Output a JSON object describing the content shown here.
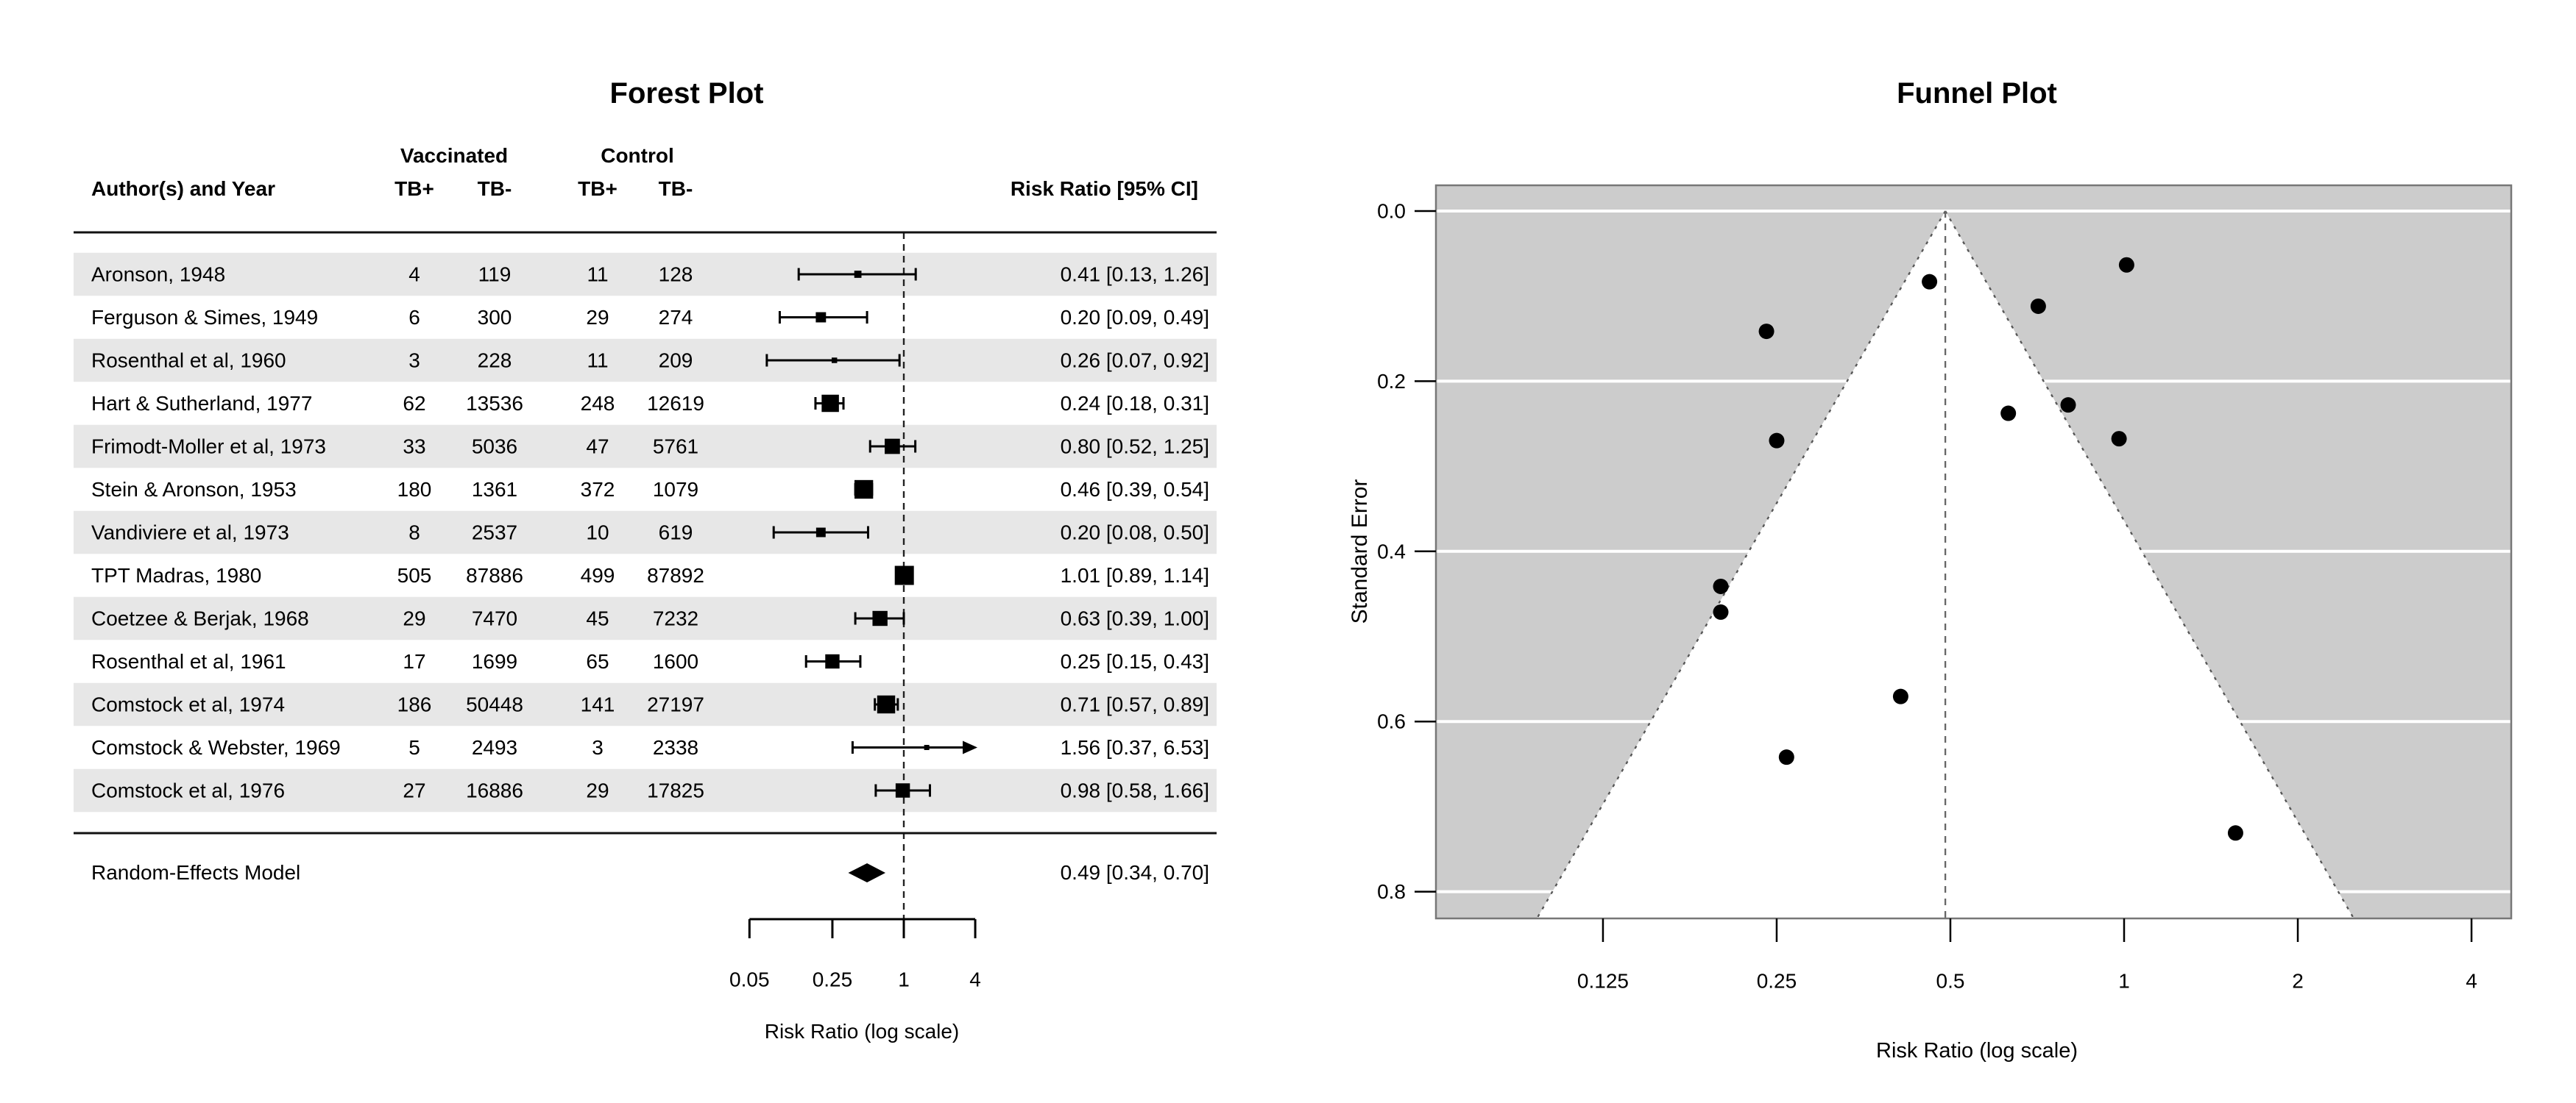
{
  "figure": {
    "description": "Meta-analysis of BCG vaccine trials: forest plot and funnel plot side by side"
  },
  "colors": {
    "background": "#ffffff",
    "row_shade": "#e7e7e7",
    "funnel_background": "#cccccc",
    "funnel_shade_inside": "#ffffff",
    "gridline_white": "#ffffff",
    "marker_black": "#000000",
    "dashed_ref_line": "#222222",
    "funnel_border_dotted": "#555555",
    "funnel_center_dashed": "#666666",
    "plot_box_border": "#777777"
  },
  "chart_data": [
    {
      "type": "scatter",
      "subtype": "forest_plot",
      "title": "Forest Plot",
      "header_author": "Author(s) and Year",
      "group_vaccinated": "Vaccinated",
      "group_control": "Control",
      "subheaders": [
        "TB+",
        "TB-",
        "TB+",
        "TB-"
      ],
      "header_rr": "Risk Ratio [95% CI]",
      "axis": {
        "label": "Risk Ratio (log scale)",
        "scale": "log",
        "tick_labels": [
          "0.05",
          "0.25",
          "1",
          "4"
        ],
        "tick_values": [
          0.05,
          0.25,
          1,
          4
        ],
        "min": 0.05,
        "max": 4,
        "reference_line": 1
      },
      "studies": [
        {
          "author": "Aronson, 1948",
          "vac_tb_pos": "4",
          "vac_tb_neg": "119",
          "con_tb_pos": "11",
          "con_tb_neg": "128",
          "rr": 0.41,
          "ci_low": 0.13,
          "ci_high": 1.26,
          "se": 0.5706,
          "label": "0.41 [0.13, 1.26]"
        },
        {
          "author": "Ferguson & Simes, 1949",
          "vac_tb_pos": "6",
          "vac_tb_neg": "300",
          "con_tb_pos": "29",
          "con_tb_neg": "274",
          "rr": 0.2,
          "ci_low": 0.09,
          "ci_high": 0.49,
          "se": 0.4412,
          "label": "0.20 [0.09, 0.49]"
        },
        {
          "author": "Rosenthal et al, 1960",
          "vac_tb_pos": "3",
          "vac_tb_neg": "228",
          "con_tb_pos": "11",
          "con_tb_neg": "209",
          "rr": 0.26,
          "ci_low": 0.07,
          "ci_high": 0.92,
          "se": 0.6419,
          "label": "0.26 [0.07, 0.92]"
        },
        {
          "author": "Hart & Sutherland, 1977",
          "vac_tb_pos": "62",
          "vac_tb_neg": "13536",
          "con_tb_pos": "248",
          "con_tb_neg": "12619",
          "rr": 0.24,
          "ci_low": 0.18,
          "ci_high": 0.31,
          "se": 0.1414,
          "label": "0.24 [0.18, 0.31]"
        },
        {
          "author": "Frimodt-Moller et al, 1973",
          "vac_tb_pos": "33",
          "vac_tb_neg": "5036",
          "con_tb_pos": "47",
          "con_tb_neg": "5761",
          "rr": 0.8,
          "ci_low": 0.52,
          "ci_high": 1.25,
          "se": 0.2279,
          "label": "0.80 [0.52, 1.25]"
        },
        {
          "author": "Stein & Aronson, 1953",
          "vac_tb_pos": "180",
          "vac_tb_neg": "1361",
          "con_tb_pos": "372",
          "con_tb_neg": "1079",
          "rr": 0.46,
          "ci_low": 0.39,
          "ci_high": 0.54,
          "se": 0.0831,
          "label": "0.46 [0.39, 0.54]"
        },
        {
          "author": "Vandiviere et al, 1973",
          "vac_tb_pos": "8",
          "vac_tb_neg": "2537",
          "con_tb_pos": "10",
          "con_tb_neg": "619",
          "rr": 0.2,
          "ci_low": 0.08,
          "ci_high": 0.5,
          "se": 0.4714,
          "label": "0.20 [0.08, 0.50]"
        },
        {
          "author": "TPT Madras, 1980",
          "vac_tb_pos": "505",
          "vac_tb_neg": "87886",
          "con_tb_pos": "499",
          "con_tb_neg": "87892",
          "rr": 1.01,
          "ci_low": 0.89,
          "ci_high": 1.14,
          "se": 0.0633,
          "label": "1.01 [0.89, 1.14]"
        },
        {
          "author": "Coetzee & Berjak, 1968",
          "vac_tb_pos": "29",
          "vac_tb_neg": "7470",
          "con_tb_pos": "45",
          "con_tb_neg": "7232",
          "rr": 0.63,
          "ci_low": 0.39,
          "ci_high": 1.0,
          "se": 0.2377,
          "label": "0.63 [0.39, 1.00]"
        },
        {
          "author": "Rosenthal et al, 1961",
          "vac_tb_pos": "17",
          "vac_tb_neg": "1699",
          "con_tb_pos": "65",
          "con_tb_neg": "1600",
          "rr": 0.25,
          "ci_low": 0.15,
          "ci_high": 0.43,
          "se": 0.2698,
          "label": "0.25 [0.15, 0.43]"
        },
        {
          "author": "Comstock et al, 1974",
          "vac_tb_pos": "186",
          "vac_tb_neg": "50448",
          "con_tb_pos": "141",
          "con_tb_neg": "27197",
          "rr": 0.71,
          "ci_low": 0.57,
          "ci_high": 0.89,
          "se": 0.1119,
          "label": "0.71 [0.57, 0.89]"
        },
        {
          "author": "Comstock & Webster, 1969",
          "vac_tb_pos": "5",
          "vac_tb_neg": "2493",
          "con_tb_pos": "3",
          "con_tb_neg": "2338",
          "rr": 1.56,
          "ci_low": 0.37,
          "ci_high": 6.53,
          "se": 0.731,
          "label": "1.56 [0.37, 6.53]"
        },
        {
          "author": "Comstock et al, 1976",
          "vac_tb_pos": "27",
          "vac_tb_neg": "16886",
          "con_tb_pos": "29",
          "con_tb_neg": "17825",
          "rr": 0.98,
          "ci_low": 0.58,
          "ci_high": 1.66,
          "se": 0.2676,
          "label": "0.98 [0.58, 1.66]"
        }
      ],
      "summary": {
        "label": "Random-Effects Model",
        "rr": 0.49,
        "ci_low": 0.34,
        "ci_high": 0.7,
        "text": "0.49 [0.34, 0.70]"
      }
    },
    {
      "type": "scatter",
      "subtype": "funnel_plot",
      "title": "Funnel Plot",
      "xlabel": "Risk Ratio (log scale)",
      "ylabel": "Standard Error",
      "x_scale": "log",
      "x_tick_labels": [
        "0.125",
        "0.25",
        "0.5",
        "1",
        "2",
        "4"
      ],
      "x_tick_values": [
        0.125,
        0.25,
        0.5,
        1,
        2,
        4
      ],
      "y_tick_labels": [
        "0.0",
        "0.2",
        "0.4",
        "0.6",
        "0.8"
      ],
      "y_tick_values": [
        0.0,
        0.2,
        0.4,
        0.6,
        0.8
      ],
      "y_axis_inverted": true,
      "center_rr": 0.49,
      "funnel_ci_multiplier": 1.96,
      "points": [
        {
          "study": "Aronson, 1948",
          "rr": 0.41,
          "se": 0.5706
        },
        {
          "study": "Ferguson & Simes, 1949",
          "rr": 0.2,
          "se": 0.4412
        },
        {
          "study": "Rosenthal et al, 1960",
          "rr": 0.26,
          "se": 0.6419
        },
        {
          "study": "Hart & Sutherland, 1977",
          "rr": 0.24,
          "se": 0.1414
        },
        {
          "study": "Frimodt-Moller et al, 1973",
          "rr": 0.8,
          "se": 0.2279
        },
        {
          "study": "Stein & Aronson, 1953",
          "rr": 0.46,
          "se": 0.0831
        },
        {
          "study": "Vandiviere et al, 1973",
          "rr": 0.2,
          "se": 0.4714
        },
        {
          "study": "TPT Madras, 1980",
          "rr": 1.01,
          "se": 0.0633
        },
        {
          "study": "Coetzee & Berjak, 1968",
          "rr": 0.63,
          "se": 0.2377
        },
        {
          "study": "Rosenthal et al, 1961",
          "rr": 0.25,
          "se": 0.2698
        },
        {
          "study": "Comstock et al, 1974",
          "rr": 0.71,
          "se": 0.1119
        },
        {
          "study": "Comstock & Webster, 1969",
          "rr": 1.56,
          "se": 0.731
        },
        {
          "study": "Comstock et al, 1976",
          "rr": 0.98,
          "se": 0.2676
        }
      ]
    }
  ]
}
